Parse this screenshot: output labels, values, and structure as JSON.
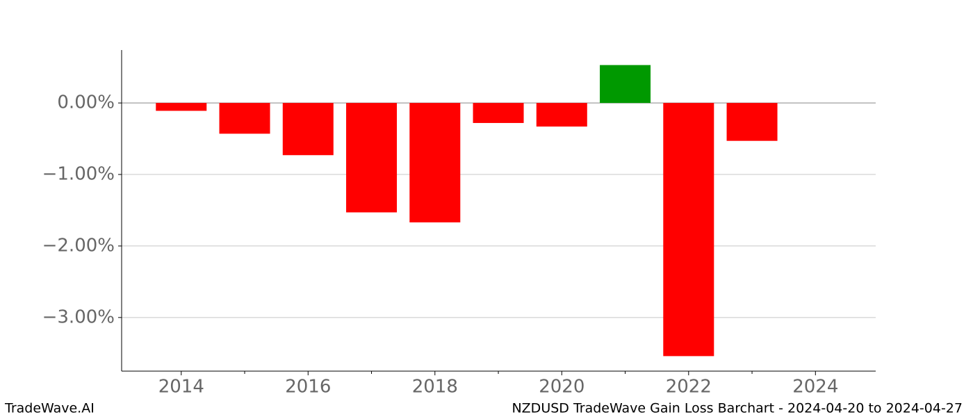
{
  "chart_data": {
    "type": "bar",
    "x": [
      2014,
      2015,
      2016,
      2017,
      2018,
      2019,
      2020,
      2021,
      2022,
      2023
    ],
    "values": [
      -0.11,
      -0.43,
      -0.73,
      -1.53,
      -1.67,
      -0.28,
      -0.33,
      0.53,
      -3.54,
      -0.53
    ],
    "color_positive": "#009900",
    "color_negative": "#ff0000",
    "xlim": [
      2013.06,
      2024.95
    ],
    "xticks": [
      2014,
      2016,
      2018,
      2020,
      2022,
      2024
    ],
    "xminorticks": [
      2015,
      2017,
      2019,
      2021,
      2023
    ],
    "ylim": [
      -3.75,
      0.74
    ],
    "yticks": [
      {
        "value": 0,
        "label": "0.00%"
      },
      {
        "value": -1,
        "label": "−1.00%"
      },
      {
        "value": -2,
        "label": "−2.00%"
      },
      {
        "value": -3,
        "label": "−3.00%"
      }
    ],
    "grid": true
  },
  "footer": {
    "brand": "TradeWave.AI",
    "caption": "NZDUSD TradeWave Gain Loss Barchart - 2024-04-20 to 2024-04-27"
  }
}
